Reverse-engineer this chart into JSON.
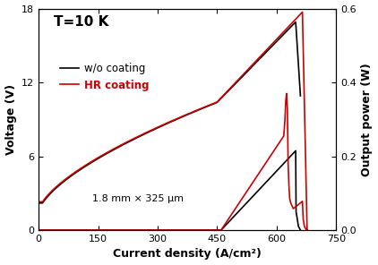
{
  "title_text": "T=10 K",
  "annotation": "1.8 mm × 325 μm",
  "xlabel": "Current density (A/cm²)",
  "ylabel_left": "Voltage (V)",
  "ylabel_right": "Output power (W)",
  "xlim": [
    0,
    750
  ],
  "ylim_left": [
    0,
    18
  ],
  "ylim_right": [
    0,
    0.6
  ],
  "xticks": [
    0,
    150,
    300,
    450,
    600,
    750
  ],
  "yticks_left": [
    0,
    6,
    12,
    18
  ],
  "yticks_right": [
    0.0,
    0.2,
    0.4,
    0.6
  ],
  "legend_labels": [
    "w/o coating",
    "HR coating"
  ],
  "legend_colors": [
    "#000000",
    "#cc0000"
  ],
  "bg_color": "#ffffff",
  "line_color_black": "#000000",
  "line_color_red": "#cc0000"
}
